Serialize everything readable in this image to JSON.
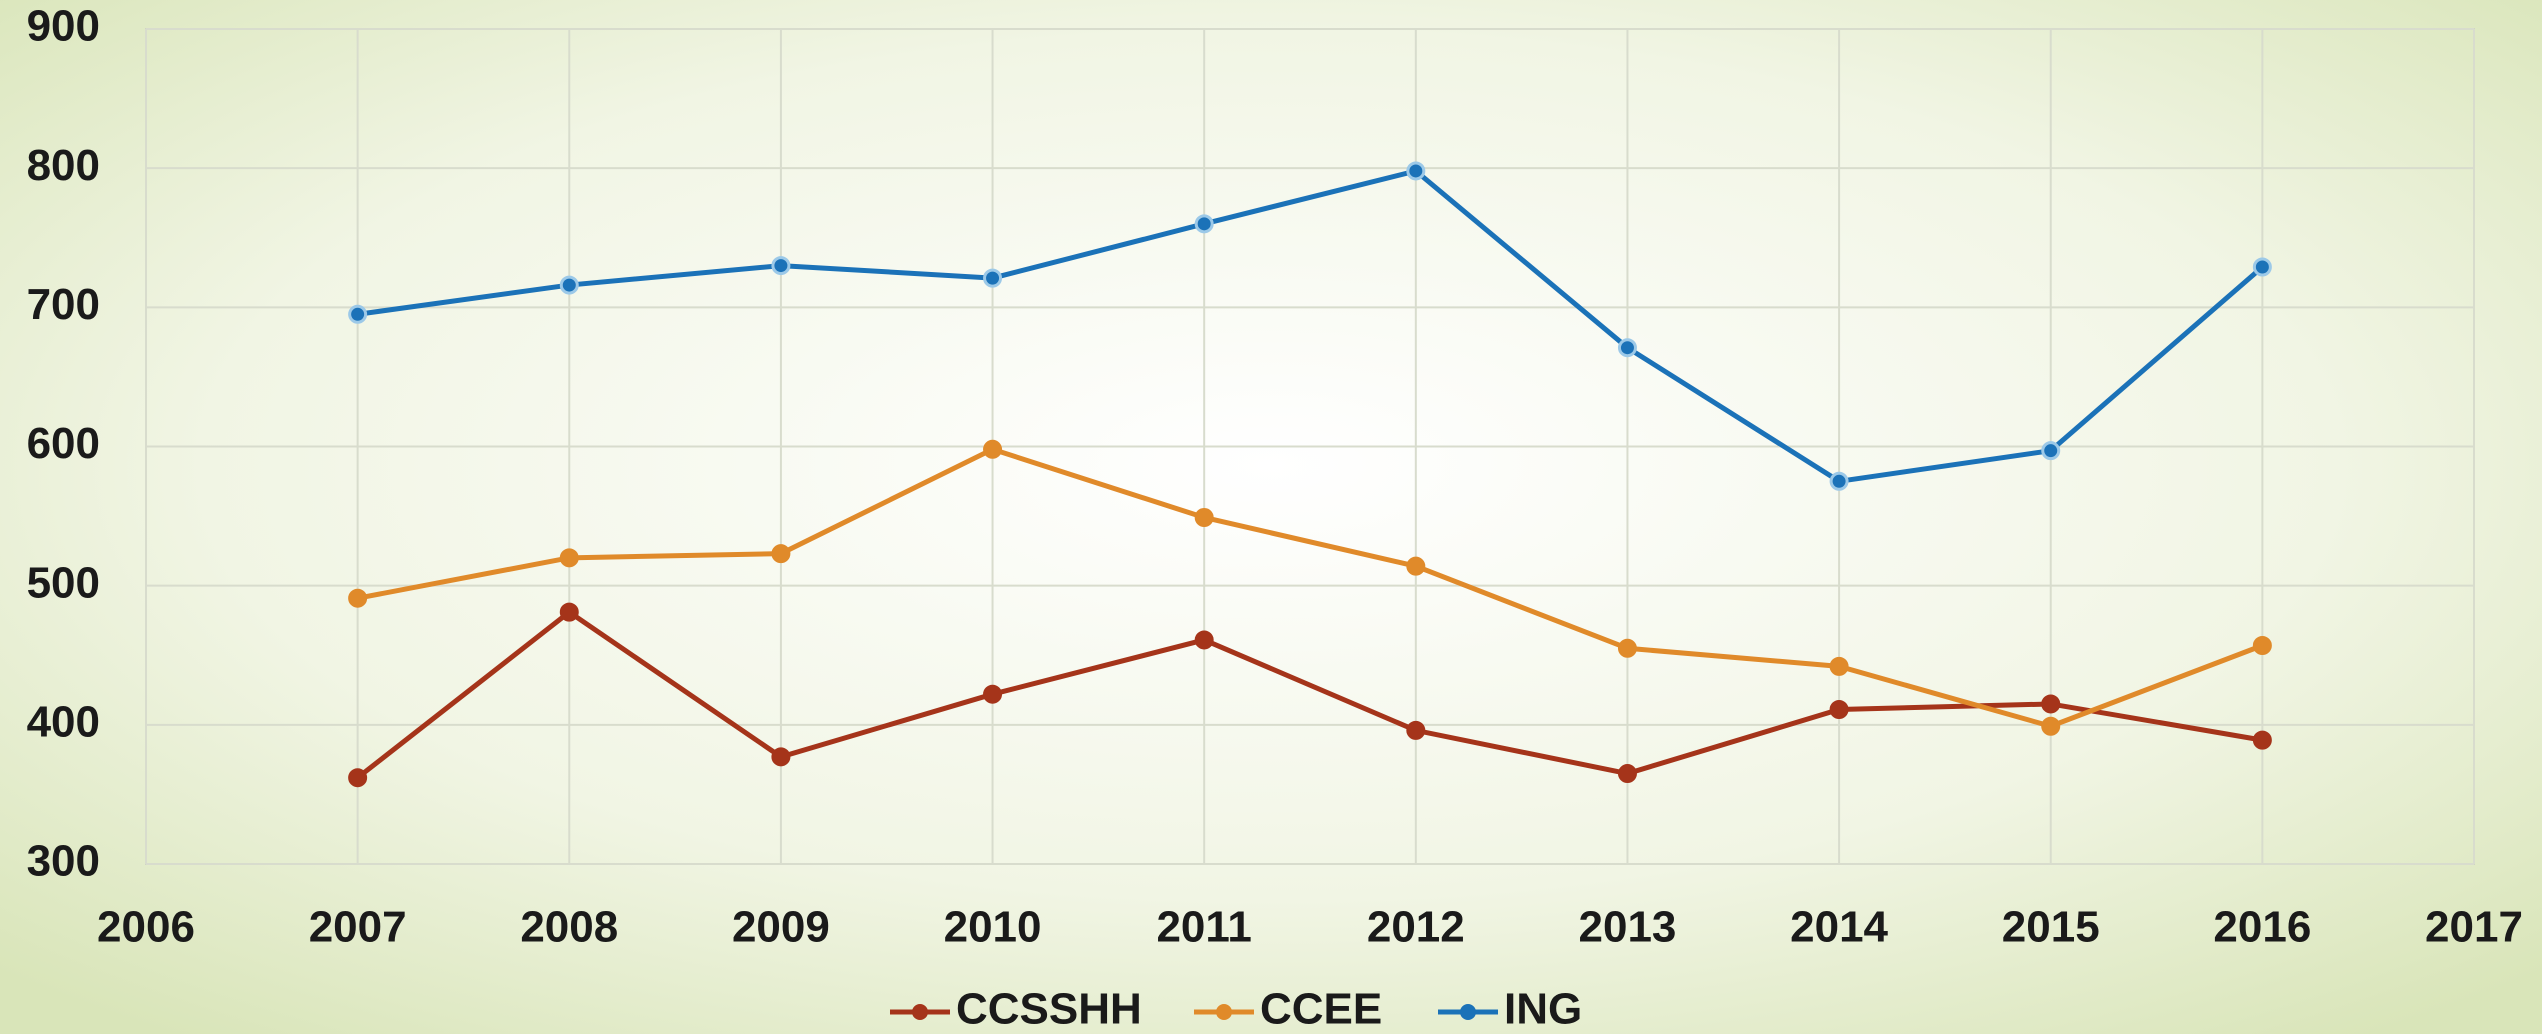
{
  "chart_data": {
    "type": "line",
    "x": [
      2007,
      2008,
      2009,
      2010,
      2011,
      2012,
      2013,
      2014,
      2015,
      2016
    ],
    "series": [
      {
        "name": "CCSSHH",
        "color": "#a5341a",
        "values": [
          362,
          481,
          377,
          422,
          461,
          396,
          365,
          411,
          415,
          389
        ]
      },
      {
        "name": "CCEE",
        "color": "#e08a2a",
        "values": [
          491,
          520,
          523,
          598,
          549,
          514,
          455,
          442,
          399,
          457
        ]
      },
      {
        "name": "ING",
        "color": "#1b72b8",
        "values": [
          695,
          716,
          730,
          721,
          760,
          798,
          671,
          575,
          597,
          729
        ]
      }
    ],
    "xlim": [
      2006,
      2017
    ],
    "xticks": [
      2006,
      2007,
      2008,
      2009,
      2010,
      2011,
      2012,
      2013,
      2014,
      2015,
      2016,
      2017
    ],
    "ylim": [
      300,
      900
    ],
    "yticks": [
      300,
      400,
      500,
      600,
      700,
      800,
      900
    ],
    "grid": true,
    "legend": "bottom"
  }
}
